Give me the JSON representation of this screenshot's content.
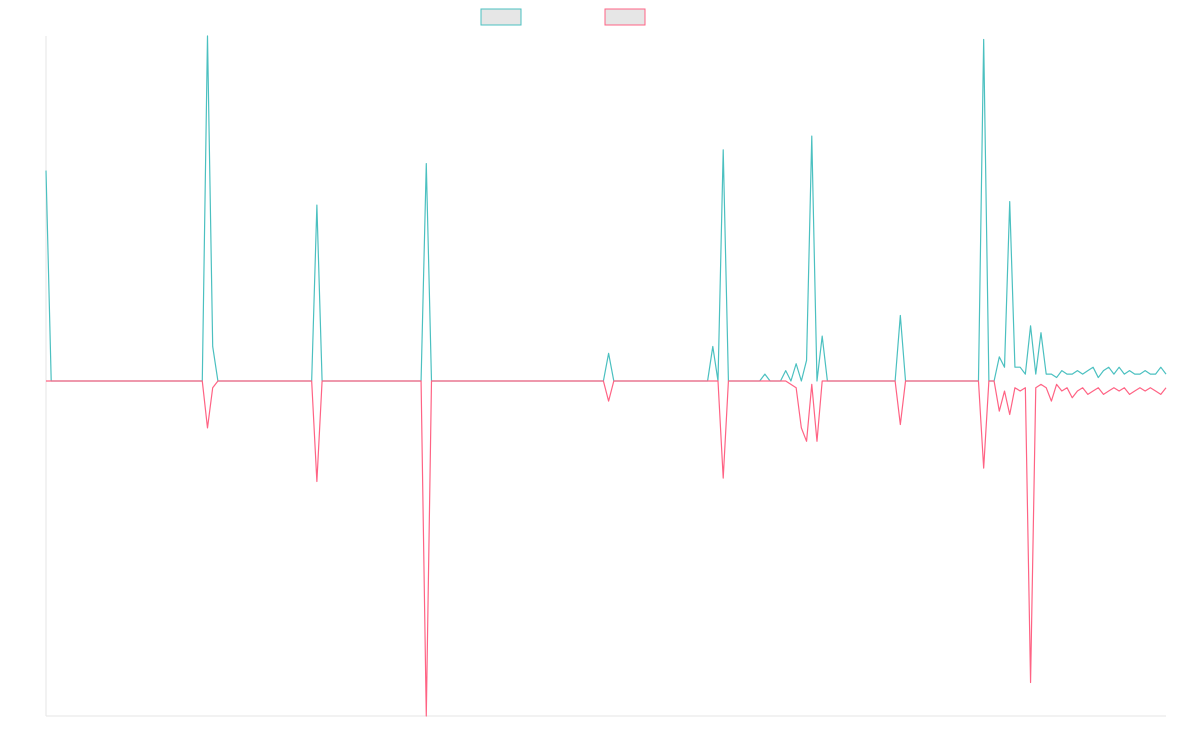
{
  "chart_data": {
    "type": "line",
    "title": "",
    "xlabel": "",
    "ylabel": "",
    "ylim": [
      -1.0,
      1.0
    ],
    "grid": false,
    "legend_position": "top",
    "series": [
      {
        "color": "#4bc0c0",
        "fill": "#e6e6e6",
        "values": [
          0.61,
          0,
          0,
          0,
          0,
          0,
          0,
          0,
          0,
          0,
          0,
          0,
          0,
          0,
          0,
          0,
          0,
          0,
          0,
          0,
          0,
          0,
          0,
          0,
          0,
          0,
          0,
          0,
          0,
          0,
          0,
          1.0,
          0.1,
          0,
          0,
          0,
          0,
          0,
          0,
          0,
          0,
          0,
          0,
          0,
          0,
          0,
          0,
          0,
          0,
          0,
          0,
          0,
          0.51,
          0,
          0,
          0,
          0,
          0,
          0,
          0,
          0,
          0,
          0,
          0,
          0,
          0,
          0,
          0,
          0,
          0,
          0,
          0,
          0,
          0.63,
          0,
          0,
          0,
          0,
          0,
          0,
          0,
          0,
          0,
          0,
          0,
          0,
          0,
          0,
          0,
          0,
          0,
          0,
          0,
          0,
          0,
          0,
          0,
          0,
          0,
          0,
          0,
          0,
          0,
          0,
          0,
          0,
          0,
          0,
          0.08,
          0,
          0,
          0,
          0,
          0,
          0,
          0,
          0,
          0,
          0,
          0,
          0,
          0,
          0,
          0,
          0,
          0,
          0,
          0,
          0.1,
          0,
          0.67,
          0,
          0,
          0,
          0,
          0,
          0,
          0,
          0.02,
          0,
          0,
          0,
          0.03,
          0,
          0.05,
          0,
          0.06,
          0.71,
          0,
          0.13,
          0,
          0,
          0,
          0,
          0,
          0,
          0,
          0,
          0,
          0,
          0,
          0,
          0,
          0,
          0.19,
          0,
          0,
          0,
          0,
          0,
          0,
          0,
          0,
          0,
          0,
          0,
          0,
          0,
          0,
          0,
          0.99,
          0,
          0,
          0.07,
          0.04,
          0.52,
          0.04,
          0.04,
          0.02,
          0.16,
          0.02,
          0.14,
          0.02,
          0.02,
          0.01,
          0.03,
          0.02,
          0.02,
          0.03,
          0.02,
          0.03,
          0.04,
          0.01,
          0.03,
          0.04,
          0.02,
          0.04,
          0.02,
          0.03,
          0.02,
          0.02,
          0.03,
          0.02,
          0.02,
          0.04,
          0.02
        ]
      },
      {
        "color": "#ff6384",
        "fill": "#e6e6e6",
        "values": [
          0,
          0,
          0,
          0,
          0,
          0,
          0,
          0,
          0,
          0,
          0,
          0,
          0,
          0,
          0,
          0,
          0,
          0,
          0,
          0,
          0,
          0,
          0,
          0,
          0,
          0,
          0,
          0,
          0,
          0,
          0,
          -0.14,
          -0.02,
          0,
          0,
          0,
          0,
          0,
          0,
          0,
          0,
          0,
          0,
          0,
          0,
          0,
          0,
          0,
          0,
          0,
          0,
          0,
          -0.3,
          0,
          0,
          0,
          0,
          0,
          0,
          0,
          0,
          0,
          0,
          0,
          0,
          0,
          0,
          0,
          0,
          0,
          0,
          0,
          0,
          -1.0,
          0,
          0,
          0,
          0,
          0,
          0,
          0,
          0,
          0,
          0,
          0,
          0,
          0,
          0,
          0,
          0,
          0,
          0,
          0,
          0,
          0,
          0,
          0,
          0,
          0,
          0,
          0,
          0,
          0,
          0,
          0,
          0,
          0,
          0,
          -0.06,
          0,
          0,
          0,
          0,
          0,
          0,
          0,
          0,
          0,
          0,
          0,
          0,
          0,
          0,
          0,
          0,
          0,
          0,
          0,
          0,
          0,
          -0.29,
          0,
          0,
          0,
          0,
          0,
          0,
          0,
          0,
          0,
          0,
          0,
          0,
          -0.01,
          -0.02,
          -0.14,
          -0.18,
          -0.01,
          -0.18,
          0,
          0,
          0,
          0,
          0,
          0,
          0,
          0,
          0,
          0,
          0,
          0,
          0,
          0,
          0,
          -0.13,
          0,
          0,
          0,
          0,
          0,
          0,
          0,
          0,
          0,
          0,
          0,
          0,
          0,
          0,
          0,
          -0.26,
          0,
          0,
          -0.09,
          -0.03,
          -0.1,
          -0.02,
          -0.03,
          -0.02,
          -0.9,
          -0.02,
          -0.01,
          -0.02,
          -0.06,
          -0.01,
          -0.03,
          -0.02,
          -0.05,
          -0.03,
          -0.02,
          -0.04,
          -0.03,
          -0.02,
          -0.04,
          -0.03,
          -0.02,
          -0.03,
          -0.02,
          -0.04,
          -0.03,
          -0.02,
          -0.03,
          -0.02,
          -0.03,
          -0.04,
          -0.02
        ]
      }
    ]
  }
}
